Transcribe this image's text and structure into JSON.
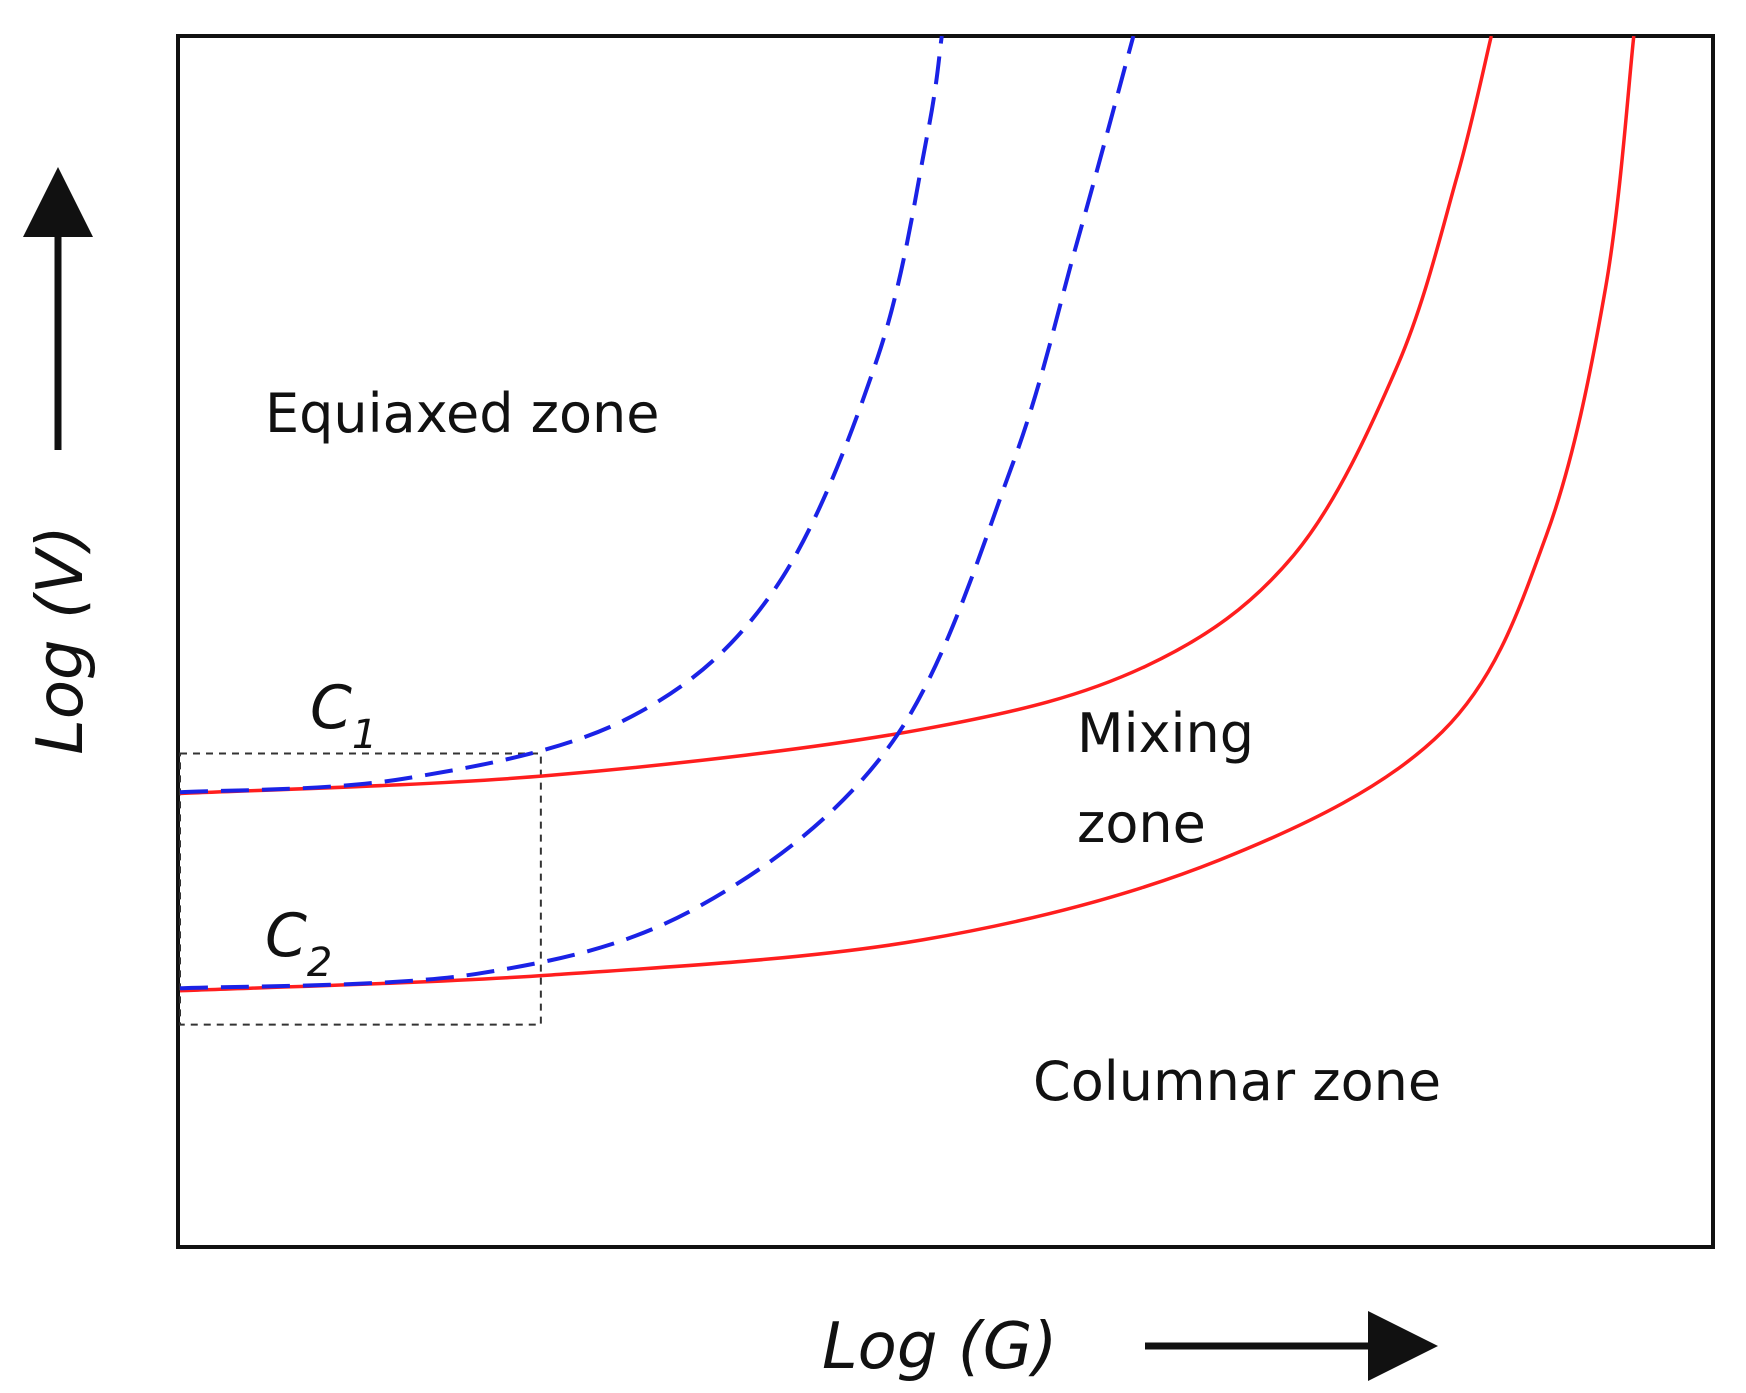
{
  "chart_data": {
    "type": "line",
    "xlabel": "Log (G)",
    "ylabel": "Log (V)",
    "xlim": [
      0,
      100
    ],
    "ylim": [
      0,
      100
    ],
    "grid": false,
    "colors": {
      "solid": "#ff1e1e",
      "dashed": "#1a22e6",
      "frame": "#111111",
      "box": "#333333"
    },
    "series": [
      {
        "style": "solid",
        "color": "#ff1e1e",
        "x": [
          0,
          25,
          50,
          65,
          75,
          82,
          86,
          88.3
        ],
        "y": [
          37.4,
          38.9,
          42.7,
          47.9,
          57.1,
          72.8,
          88.4,
          100
        ]
      },
      {
        "style": "solid",
        "color": "#ff1e1e",
        "x": [
          0,
          25,
          50,
          70,
          85,
          92,
          96,
          97.9
        ],
        "y": [
          21.1,
          22.4,
          25.3,
          31.9,
          42.5,
          58.7,
          79.2,
          100
        ]
      },
      {
        "style": "dashed",
        "color": "#1a22e6",
        "x": [
          0,
          15,
          30,
          40,
          47,
          50.3,
          51.3
        ],
        "y": [
          37.5,
          38.6,
          43.5,
          54.2,
          73.5,
          91.7,
          100
        ]
      },
      {
        "style": "dashed",
        "color": "#1a22e6",
        "x": [
          0,
          20,
          35,
          48,
          56,
          60.4,
          64.2
        ],
        "y": [
          21.3,
          22.5,
          28.1,
          41.7,
          64.4,
          82.9,
          100
        ]
      }
    ],
    "annotations": {
      "equiaxed": "Equiaxed zone",
      "mixing_line1": "Mixing",
      "mixing_line2": "zone",
      "columnar": "Columnar zone",
      "c1_main": "C",
      "c1_sub": "1",
      "c2_main": "C",
      "c2_sub": "2"
    },
    "inset_box": {
      "x": [
        0,
        24.3
      ],
      "y": [
        18.3,
        40.7
      ]
    }
  }
}
